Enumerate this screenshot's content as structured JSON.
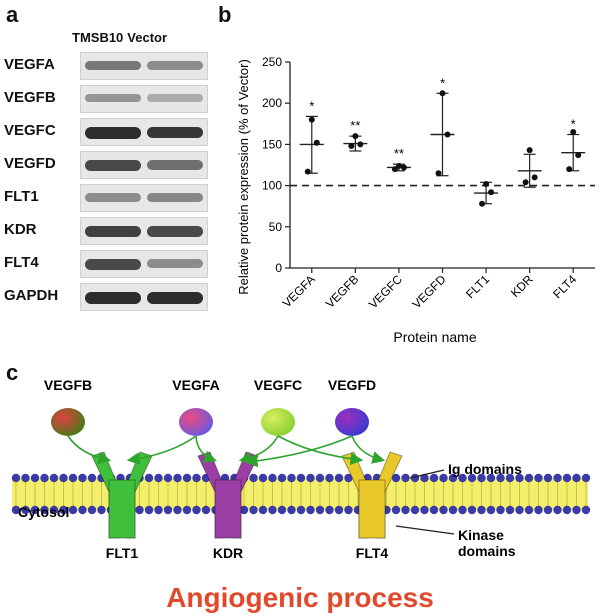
{
  "panels": {
    "a": "a",
    "b": "b",
    "c": "c"
  },
  "blot": {
    "columns": [
      "TMSB10",
      "Vector"
    ],
    "rows": [
      {
        "label": "VEGFA",
        "tmsb10": 0.55,
        "vector": 0.45
      },
      {
        "label": "VEGFB",
        "tmsb10": 0.4,
        "vector": 0.28
      },
      {
        "label": "VEGFC",
        "tmsb10": 0.95,
        "vector": 0.9
      },
      {
        "label": "VEGFD",
        "tmsb10": 0.8,
        "vector": 0.6
      },
      {
        "label": "FLT1",
        "tmsb10": 0.45,
        "vector": 0.48
      },
      {
        "label": "KDR",
        "tmsb10": 0.85,
        "vector": 0.8
      },
      {
        "label": "FLT4",
        "tmsb10": 0.8,
        "vector": 0.45
      },
      {
        "label": "GAPDH",
        "tmsb10": 0.95,
        "vector": 0.95
      }
    ]
  },
  "chart_data": {
    "type": "scatter",
    "ylabel": "Relative protein expression (% of Vector)",
    "xlabel": "Protein name",
    "ylim": [
      0,
      250
    ],
    "yticks": [
      0,
      50,
      100,
      150,
      200,
      250
    ],
    "reference_line": 100,
    "categories": [
      "VEGFA",
      "VEGFB",
      "VEGFC",
      "VEGFD",
      "FLT1",
      "KDR",
      "FLT4"
    ],
    "means": [
      150,
      151,
      122,
      162,
      91,
      118,
      140
    ],
    "error_low": [
      115,
      142,
      118,
      112,
      78,
      98,
      118
    ],
    "error_high": [
      184,
      160,
      126,
      212,
      104,
      138,
      162
    ],
    "points": [
      [
        180,
        152,
        117
      ],
      [
        160,
        150,
        148
      ],
      [
        124,
        122,
        120
      ],
      [
        212,
        162,
        115
      ],
      [
        102,
        92,
        78
      ],
      [
        143,
        110,
        104
      ],
      [
        165,
        137,
        120
      ]
    ],
    "significance": [
      "*",
      "**",
      "**",
      "*",
      "",
      "",
      "*"
    ]
  },
  "diagram": {
    "ligands": [
      "VEGFB",
      "VEGFA",
      "VEGFC",
      "VEGFD"
    ],
    "receptors": [
      "FLT1",
      "KDR",
      "FLT4"
    ],
    "labels": {
      "ig": "Ig domains",
      "kinase": "Kinase",
      "domains": "domains",
      "cytosol": "Cytosol"
    },
    "colors": {
      "flt1": "#3fbf3a",
      "kdr": "#9b3fa6",
      "flt4": "#e9c92a",
      "arrow": "#2ea32e",
      "membrane_head": "#3a3aa8",
      "membrane_tail": "#f3ef6a"
    }
  },
  "bottom_title": "Angiogenic process"
}
